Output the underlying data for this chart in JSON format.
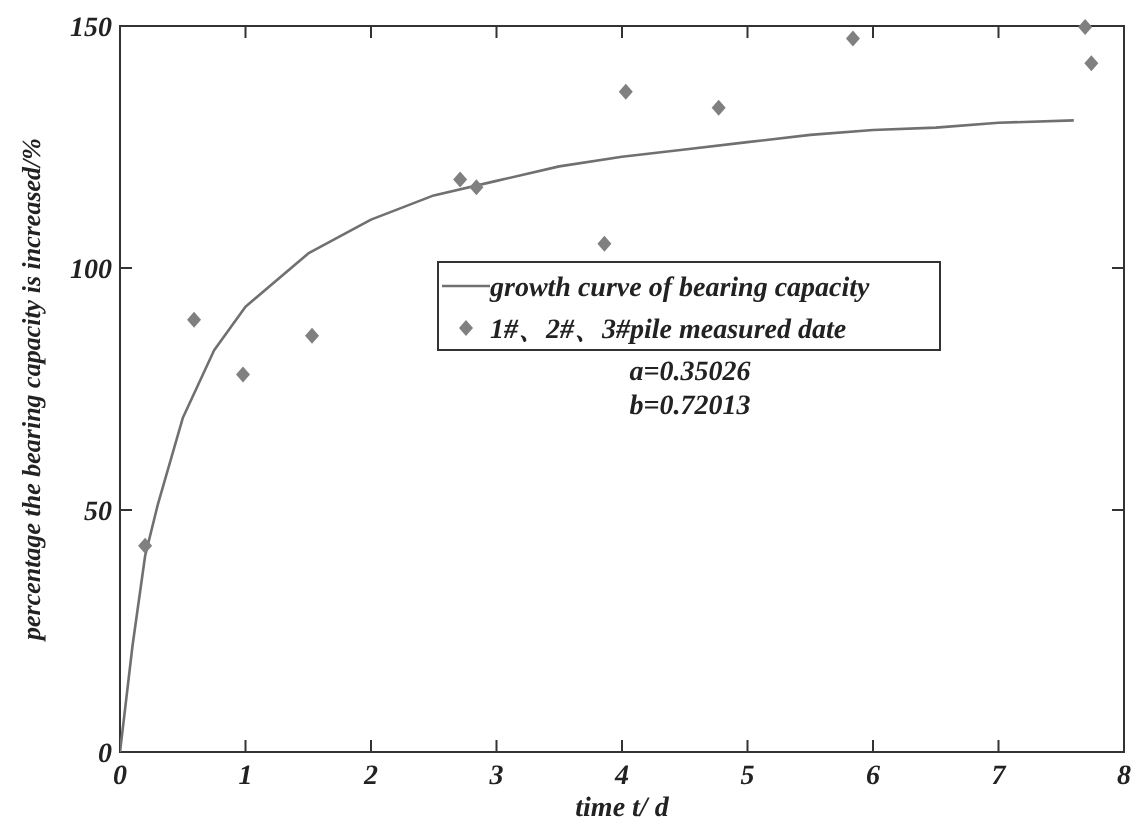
{
  "chart_data": {
    "type": "scatter",
    "xlabel": "time t/ d",
    "ylabel": "percentage the bearing capacity is increased/%",
    "xlim": [
      0,
      8
    ],
    "xticks": [
      0,
      1,
      2,
      3,
      4,
      5,
      6,
      7,
      8
    ],
    "ylim": [
      0,
      150
    ],
    "yticks": [
      0,
      50,
      100,
      150
    ],
    "grid": false,
    "legend": "center",
    "series": [
      {
        "name": "growth curve of  bearing capacity",
        "type": "line",
        "color": "#707070",
        "marker": "none",
        "x": [
          0,
          0.1,
          0.2,
          0.3,
          0.5,
          0.75,
          1,
          1.5,
          2,
          2.5,
          3,
          3.5,
          4,
          4.5,
          5,
          5.5,
          6,
          6.5,
          7,
          7.6
        ],
        "values": [
          0,
          22,
          40.5,
          51,
          69,
          83,
          92,
          103,
          110,
          115,
          118,
          121,
          123,
          124.5,
          126,
          127.5,
          128.5,
          129,
          130,
          130.5
        ]
      },
      {
        "name": "1#、2#、3#pile measured date",
        "type": "scatter",
        "color": "#808080",
        "marker": "diamond",
        "x": [
          0.2,
          0.59,
          0.98,
          1.53,
          2.71,
          2.84,
          3.86,
          4.03,
          4.77,
          5.84,
          7.69,
          7.74
        ],
        "values": [
          42.6,
          89.3,
          78,
          86,
          118.3,
          116.7,
          105,
          136.4,
          133.1,
          147.4,
          149.8,
          142.3
        ]
      }
    ],
    "annotations": [
      "a=0.35026",
      "b=0.72013"
    ]
  }
}
